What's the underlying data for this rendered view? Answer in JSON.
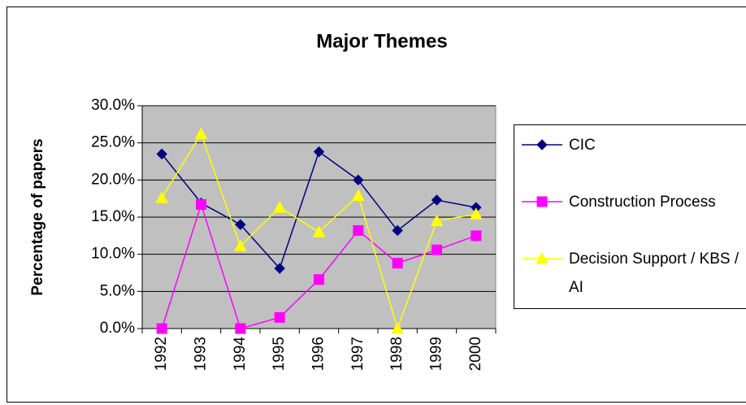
{
  "chart_data": {
    "type": "line",
    "title": "Major Themes",
    "y_label": "Percentage of papers",
    "categories": [
      "1992",
      "1993",
      "1994",
      "1995",
      "1996",
      "1997",
      "1998",
      "1999",
      "2000"
    ],
    "series": [
      {
        "name": "CIC",
        "color": "#000080",
        "marker": "diamond",
        "values": [
          23.5,
          16.9,
          14.0,
          8.1,
          23.8,
          20.0,
          13.2,
          17.3,
          16.3
        ]
      },
      {
        "name": "Construction Process",
        "color": "#ff00ff",
        "marker": "square",
        "values": [
          0,
          16.7,
          0,
          1.5,
          6.6,
          13.2,
          8.8,
          10.6,
          12.5
        ]
      },
      {
        "name": "Decision Support / KBS / AI",
        "color": "#ffff00",
        "marker": "triangle",
        "values": [
          17.6,
          26.2,
          11.1,
          16.3,
          13.0,
          17.9,
          0,
          14.5,
          15.4
        ]
      }
    ],
    "ylim": [
      0,
      30
    ],
    "yticks": [
      {
        "value": 0,
        "label": "0.0%"
      },
      {
        "value": 5,
        "label": "5.0%"
      },
      {
        "value": 10,
        "label": "10.0%"
      },
      {
        "value": 15,
        "label": "15.0%"
      },
      {
        "value": 20,
        "label": "20.0%"
      },
      {
        "value": 25,
        "label": "25.0%"
      },
      {
        "value": 30,
        "label": "30.0%"
      }
    ],
    "grid": true,
    "legend": "right"
  }
}
